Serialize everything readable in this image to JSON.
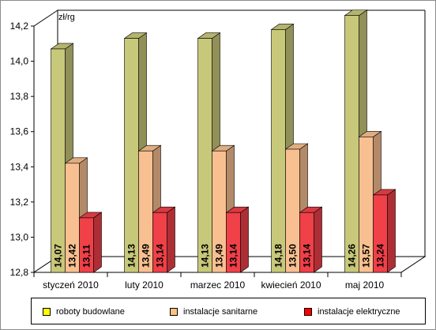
{
  "chart_data": {
    "type": "bar",
    "unit_label": "zł/rg",
    "categories": [
      "styczeń 2010",
      "luty 2010",
      "marzec 2010",
      "kwiecień 2010",
      "maj 2010"
    ],
    "series": [
      {
        "name": "roboty budowlane",
        "values": [
          14.07,
          14.13,
          14.13,
          14.18,
          14.26
        ],
        "labels": [
          "14,07",
          "14,13",
          "14,13",
          "14,18",
          "14,26"
        ],
        "color": "#c8c87a",
        "legend_color": "#ffff00"
      },
      {
        "name": "instalacje sanitarne",
        "values": [
          13.42,
          13.49,
          13.49,
          13.5,
          13.57
        ],
        "labels": [
          "13,42",
          "13,49",
          "13,49",
          "13,50",
          "13,57"
        ],
        "color": "#f8c090",
        "legend_color": "#ffc080"
      },
      {
        "name": "instalacje elektryczne",
        "values": [
          13.11,
          13.14,
          13.14,
          13.14,
          13.24
        ],
        "labels": [
          "13,11",
          "13,14",
          "13,14",
          "13,14",
          "13,24"
        ],
        "color": "#f04048",
        "legend_color": "#ff0000"
      }
    ],
    "y_ticks": [
      "12,8",
      "13,0",
      "13,2",
      "13,4",
      "13,6",
      "13,8",
      "14,0",
      "14,2"
    ],
    "ylim": [
      12.8,
      14.2
    ],
    "grid": false,
    "legend_position": "bottom"
  }
}
